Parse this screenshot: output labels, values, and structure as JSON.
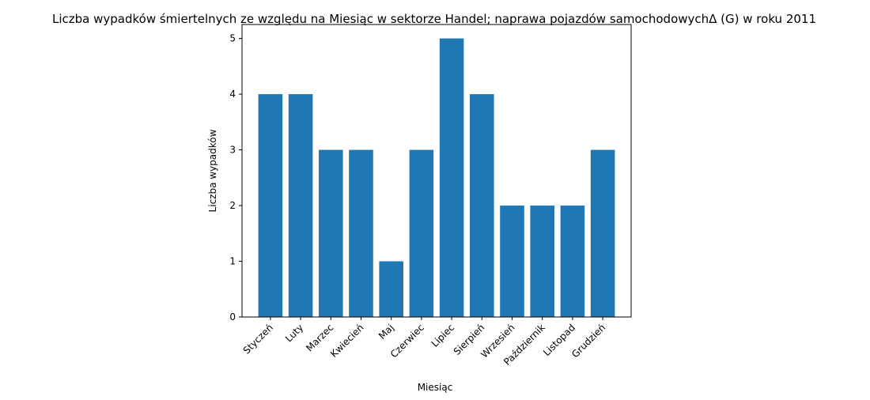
{
  "chart_data": {
    "type": "bar",
    "title": "Liczba wypadków śmiertelnych ze względu na Miesiąc w sektorze Handel; naprawa pojazdów samochodowychΔ  (G) w roku 2011",
    "xlabel": "Miesiąc",
    "ylabel": "Liczba wypadków",
    "categories": [
      "Styczeń",
      "Luty",
      "Marzec",
      "Kwiecień",
      "Maj",
      "Czerwiec",
      "Lipiec",
      "Sierpień",
      "Wrzesień",
      "Październik",
      "Listopad",
      "Grudzień"
    ],
    "values": [
      4,
      4,
      3,
      3,
      1,
      3,
      5,
      4,
      2,
      2,
      2,
      3
    ],
    "ylim": [
      0,
      5.25
    ],
    "yticks": [
      "0",
      "1",
      "2",
      "3",
      "4",
      "5"
    ],
    "grid": false,
    "bar_color": "#1f77b4"
  }
}
